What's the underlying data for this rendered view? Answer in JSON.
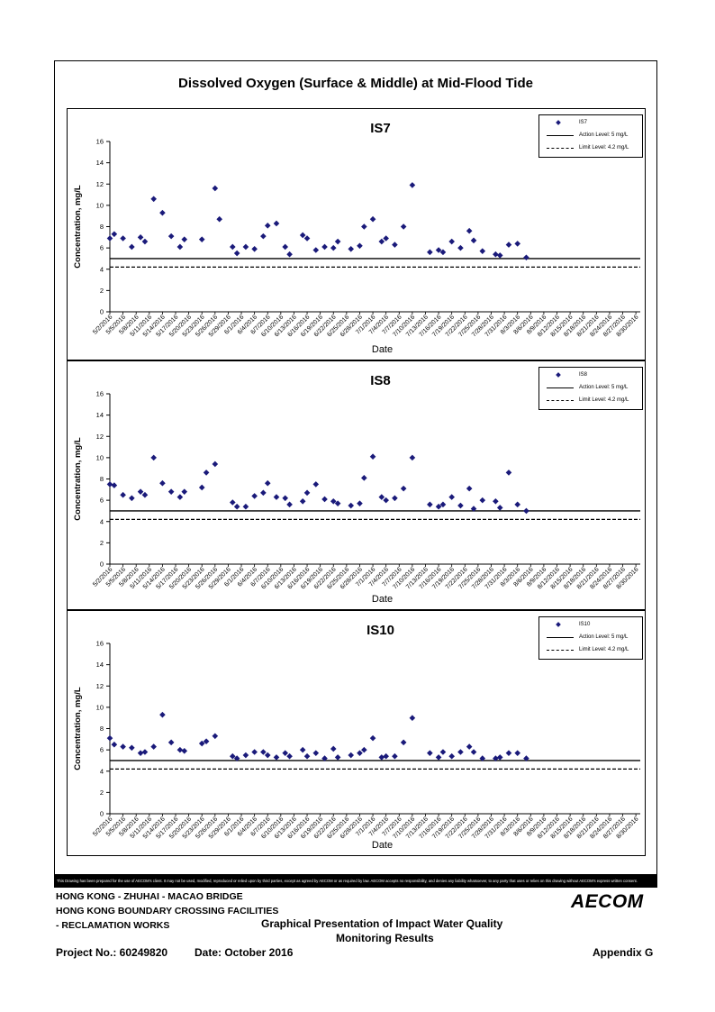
{
  "page_title": "Dissolved Oxygen (Surface & Middle) at Mid-Flood Tide",
  "chart_data": [
    {
      "type": "scatter",
      "title": "IS7",
      "xlabel": "Date",
      "ylabel": "Concentration, mg/L",
      "ylim": [
        0,
        16
      ],
      "yticks": [
        0,
        2,
        4,
        6,
        8,
        10,
        12,
        14,
        16
      ],
      "xlim": [
        "2016-05-02",
        "2016-08-31"
      ],
      "x_tick_labels": [
        "5/2/2016",
        "5/5/2016",
        "5/8/2016",
        "5/11/2016",
        "5/14/2016",
        "5/17/2016",
        "5/20/2016",
        "5/23/2016",
        "5/26/2016",
        "5/29/2016",
        "6/1/2016",
        "6/4/2016",
        "6/7/2016",
        "6/10/2016",
        "6/13/2016",
        "6/16/2016",
        "6/19/2016",
        "6/22/2016",
        "6/25/2016",
        "6/28/2016",
        "7/1/2016",
        "7/4/2016",
        "7/7/2016",
        "7/10/2016",
        "7/13/2016",
        "7/16/2016",
        "7/19/2016",
        "7/22/2016",
        "7/25/2016",
        "7/28/2016",
        "7/31/2016",
        "8/3/2016",
        "8/6/2016",
        "8/9/2016",
        "8/12/2016",
        "8/15/2016",
        "8/18/2016",
        "8/21/2016",
        "8/24/2016",
        "8/27/2016",
        "8/30/2016"
      ],
      "series": [
        {
          "name": "IS7",
          "marker": "diamond",
          "color": "#1a1a7a",
          "points": [
            [
              "2016-05-02",
              6.9
            ],
            [
              "2016-05-03",
              7.3
            ],
            [
              "2016-05-05",
              6.9
            ],
            [
              "2016-05-07",
              6.1
            ],
            [
              "2016-05-09",
              7.0
            ],
            [
              "2016-05-10",
              6.6
            ],
            [
              "2016-05-12",
              10.6
            ],
            [
              "2016-05-14",
              9.3
            ],
            [
              "2016-05-16",
              7.1
            ],
            [
              "2016-05-18",
              6.1
            ],
            [
              "2016-05-19",
              6.8
            ],
            [
              "2016-05-23",
              6.8
            ],
            [
              "2016-05-26",
              11.6
            ],
            [
              "2016-05-27",
              8.7
            ],
            [
              "2016-05-30",
              6.1
            ],
            [
              "2016-05-31",
              5.5
            ],
            [
              "2016-06-02",
              6.1
            ],
            [
              "2016-06-04",
              5.9
            ],
            [
              "2016-06-06",
              7.1
            ],
            [
              "2016-06-07",
              8.1
            ],
            [
              "2016-06-09",
              8.3
            ],
            [
              "2016-06-11",
              6.1
            ],
            [
              "2016-06-12",
              5.4
            ],
            [
              "2016-06-15",
              7.2
            ],
            [
              "2016-06-16",
              6.9
            ],
            [
              "2016-06-18",
              5.8
            ],
            [
              "2016-06-20",
              6.1
            ],
            [
              "2016-06-22",
              6.0
            ],
            [
              "2016-06-23",
              6.6
            ],
            [
              "2016-06-26",
              5.9
            ],
            [
              "2016-06-28",
              6.2
            ],
            [
              "2016-06-29",
              8.0
            ],
            [
              "2016-07-01",
              8.7
            ],
            [
              "2016-07-03",
              6.6
            ],
            [
              "2016-07-04",
              6.9
            ],
            [
              "2016-07-06",
              6.3
            ],
            [
              "2016-07-08",
              8.0
            ],
            [
              "2016-07-10",
              11.9
            ],
            [
              "2016-07-14",
              5.6
            ],
            [
              "2016-07-16",
              5.8
            ],
            [
              "2016-07-17",
              5.6
            ],
            [
              "2016-07-19",
              6.6
            ],
            [
              "2016-07-21",
              6.0
            ],
            [
              "2016-07-23",
              7.6
            ],
            [
              "2016-07-24",
              6.7
            ],
            [
              "2016-07-26",
              5.7
            ],
            [
              "2016-07-29",
              5.4
            ],
            [
              "2016-07-30",
              5.3
            ],
            [
              "2016-08-01",
              6.3
            ],
            [
              "2016-08-03",
              6.4
            ],
            [
              "2016-08-05",
              5.1
            ]
          ]
        }
      ],
      "reference_lines": [
        {
          "label": "Action Level: 5 mg/L",
          "value": 5,
          "style": "solid"
        },
        {
          "label": "Limit Level: 4.2 mg/L",
          "value": 4.2,
          "style": "dashed"
        }
      ],
      "legend": "top-right"
    },
    {
      "type": "scatter",
      "title": "IS8",
      "xlabel": "Date",
      "ylabel": "Concentration, mg/L",
      "ylim": [
        0,
        16
      ],
      "yticks": [
        0,
        2,
        4,
        6,
        8,
        10,
        12,
        14,
        16
      ],
      "xlim": [
        "2016-05-02",
        "2016-08-31"
      ],
      "x_tick_labels": [
        "5/2/2016",
        "5/5/2016",
        "5/8/2016",
        "5/11/2016",
        "5/14/2016",
        "5/17/2016",
        "5/20/2016",
        "5/23/2016",
        "5/26/2016",
        "5/29/2016",
        "6/1/2016",
        "6/4/2016",
        "6/7/2016",
        "6/10/2016",
        "6/13/2016",
        "6/16/2016",
        "6/19/2016",
        "6/22/2016",
        "6/25/2016",
        "6/28/2016",
        "7/1/2016",
        "7/4/2016",
        "7/7/2016",
        "7/10/2016",
        "7/13/2016",
        "7/16/2016",
        "7/19/2016",
        "7/22/2016",
        "7/25/2016",
        "7/28/2016",
        "7/31/2016",
        "8/3/2016",
        "8/6/2016",
        "8/9/2016",
        "8/12/2016",
        "8/15/2016",
        "8/18/2016",
        "8/21/2016",
        "8/24/2016",
        "8/27/2016",
        "8/30/2016"
      ],
      "series": [
        {
          "name": "IS8",
          "marker": "diamond",
          "color": "#1a1a7a",
          "points": [
            [
              "2016-05-02",
              7.5
            ],
            [
              "2016-05-03",
              7.4
            ],
            [
              "2016-05-05",
              6.5
            ],
            [
              "2016-05-07",
              6.2
            ],
            [
              "2016-05-09",
              6.8
            ],
            [
              "2016-05-10",
              6.5
            ],
            [
              "2016-05-12",
              10.0
            ],
            [
              "2016-05-14",
              7.6
            ],
            [
              "2016-05-16",
              6.8
            ],
            [
              "2016-05-18",
              6.3
            ],
            [
              "2016-05-19",
              6.8
            ],
            [
              "2016-05-23",
              7.2
            ],
            [
              "2016-05-24",
              8.6
            ],
            [
              "2016-05-26",
              9.4
            ],
            [
              "2016-05-30",
              5.8
            ],
            [
              "2016-05-31",
              5.4
            ],
            [
              "2016-06-02",
              5.4
            ],
            [
              "2016-06-04",
              6.4
            ],
            [
              "2016-06-06",
              6.7
            ],
            [
              "2016-06-07",
              7.6
            ],
            [
              "2016-06-09",
              6.3
            ],
            [
              "2016-06-11",
              6.2
            ],
            [
              "2016-06-12",
              5.6
            ],
            [
              "2016-06-15",
              5.9
            ],
            [
              "2016-06-16",
              6.7
            ],
            [
              "2016-06-18",
              7.5
            ],
            [
              "2016-06-20",
              6.1
            ],
            [
              "2016-06-22",
              5.9
            ],
            [
              "2016-06-23",
              5.7
            ],
            [
              "2016-06-26",
              5.5
            ],
            [
              "2016-06-28",
              5.7
            ],
            [
              "2016-06-29",
              8.1
            ],
            [
              "2016-07-01",
              10.1
            ],
            [
              "2016-07-03",
              6.3
            ],
            [
              "2016-07-04",
              6.0
            ],
            [
              "2016-07-06",
              6.2
            ],
            [
              "2016-07-08",
              7.1
            ],
            [
              "2016-07-10",
              10.0
            ],
            [
              "2016-07-14",
              5.6
            ],
            [
              "2016-07-16",
              5.4
            ],
            [
              "2016-07-17",
              5.6
            ],
            [
              "2016-07-19",
              6.3
            ],
            [
              "2016-07-21",
              5.5
            ],
            [
              "2016-07-23",
              7.1
            ],
            [
              "2016-07-24",
              5.2
            ],
            [
              "2016-07-26",
              6.0
            ],
            [
              "2016-07-29",
              5.9
            ],
            [
              "2016-07-30",
              5.3
            ],
            [
              "2016-08-01",
              8.6
            ],
            [
              "2016-08-03",
              5.6
            ],
            [
              "2016-08-05",
              5.0
            ]
          ]
        }
      ],
      "reference_lines": [
        {
          "label": "Action Level: 5 mg/L",
          "value": 5,
          "style": "solid"
        },
        {
          "label": "Limit Level: 4.2 mg/L",
          "value": 4.2,
          "style": "dashed"
        }
      ],
      "legend": "top-right"
    },
    {
      "type": "scatter",
      "title": "IS10",
      "xlabel": "Date",
      "ylabel": "Concentration, mg/L",
      "ylim": [
        0,
        16
      ],
      "yticks": [
        0,
        2,
        4,
        6,
        8,
        10,
        12,
        14,
        16
      ],
      "xlim": [
        "2016-05-02",
        "2016-08-31"
      ],
      "x_tick_labels": [
        "5/2/2016",
        "5/5/2016",
        "5/8/2016",
        "5/11/2016",
        "5/14/2016",
        "5/17/2016",
        "5/20/2016",
        "5/23/2016",
        "5/26/2016",
        "5/29/2016",
        "6/1/2016",
        "6/4/2016",
        "6/7/2016",
        "6/10/2016",
        "6/13/2016",
        "6/16/2016",
        "6/19/2016",
        "6/22/2016",
        "6/25/2016",
        "6/28/2016",
        "7/1/2016",
        "7/4/2016",
        "7/7/2016",
        "7/10/2016",
        "7/13/2016",
        "7/16/2016",
        "7/19/2016",
        "7/22/2016",
        "7/25/2016",
        "7/28/2016",
        "7/31/2016",
        "8/3/2016",
        "8/6/2016",
        "8/9/2016",
        "8/12/2016",
        "8/15/2016",
        "8/18/2016",
        "8/21/2016",
        "8/24/2016",
        "8/27/2016",
        "8/30/2016"
      ],
      "series": [
        {
          "name": "IS10",
          "marker": "diamond",
          "color": "#1a1a7a",
          "points": [
            [
              "2016-05-02",
              7.1
            ],
            [
              "2016-05-03",
              6.5
            ],
            [
              "2016-05-05",
              6.3
            ],
            [
              "2016-05-07",
              6.2
            ],
            [
              "2016-05-09",
              5.7
            ],
            [
              "2016-05-10",
              5.8
            ],
            [
              "2016-05-12",
              6.3
            ],
            [
              "2016-05-14",
              9.3
            ],
            [
              "2016-05-16",
              6.7
            ],
            [
              "2016-05-18",
              6.0
            ],
            [
              "2016-05-19",
              5.9
            ],
            [
              "2016-05-23",
              6.6
            ],
            [
              "2016-05-24",
              6.8
            ],
            [
              "2016-05-26",
              7.3
            ],
            [
              "2016-05-30",
              5.4
            ],
            [
              "2016-05-31",
              5.2
            ],
            [
              "2016-06-02",
              5.5
            ],
            [
              "2016-06-04",
              5.8
            ],
            [
              "2016-06-06",
              5.8
            ],
            [
              "2016-06-07",
              5.5
            ],
            [
              "2016-06-09",
              5.3
            ],
            [
              "2016-06-11",
              5.7
            ],
            [
              "2016-06-12",
              5.4
            ],
            [
              "2016-06-15",
              6.0
            ],
            [
              "2016-06-16",
              5.4
            ],
            [
              "2016-06-18",
              5.7
            ],
            [
              "2016-06-20",
              5.2
            ],
            [
              "2016-06-22",
              6.1
            ],
            [
              "2016-06-23",
              5.3
            ],
            [
              "2016-06-26",
              5.5
            ],
            [
              "2016-06-28",
              5.7
            ],
            [
              "2016-06-29",
              6.0
            ],
            [
              "2016-07-01",
              7.1
            ],
            [
              "2016-07-03",
              5.3
            ],
            [
              "2016-07-04",
              5.4
            ],
            [
              "2016-07-06",
              5.4
            ],
            [
              "2016-07-08",
              6.7
            ],
            [
              "2016-07-10",
              9.0
            ],
            [
              "2016-07-14",
              5.7
            ],
            [
              "2016-07-16",
              5.3
            ],
            [
              "2016-07-17",
              5.8
            ],
            [
              "2016-07-19",
              5.4
            ],
            [
              "2016-07-21",
              5.8
            ],
            [
              "2016-07-23",
              6.3
            ],
            [
              "2016-07-24",
              5.8
            ],
            [
              "2016-07-26",
              5.2
            ],
            [
              "2016-07-29",
              5.2
            ],
            [
              "2016-07-30",
              5.3
            ],
            [
              "2016-08-01",
              5.7
            ],
            [
              "2016-08-03",
              5.7
            ],
            [
              "2016-08-05",
              5.2
            ]
          ]
        }
      ],
      "reference_lines": [
        {
          "label": "Action Level: 5 mg/L",
          "value": 5,
          "style": "solid"
        },
        {
          "label": "Limit Level: 4.2 mg/L",
          "value": 4.2,
          "style": "dashed"
        }
      ],
      "legend": "top-right"
    }
  ],
  "disclaimer": "This Drawing has been prepared for the use of AECOM's client. It may not be used, modified, reproduced or relied upon by third parties, except as agreed by AECOM or as required by law. AECOM accepts no responsibility, and denies any liability whatsoever, to any party that uses or relies on this drawing without AECOM's express written consent.",
  "footer": {
    "project_line1": "HONG KONG - ZHUHAI - MACAO BRIDGE",
    "project_line2": "HONG KONG BOUNDARY CROSSING FACILITIES",
    "project_line3": "- RECLAMATION WORKS",
    "drawing_title_line1": "Graphical Presentation of Impact Water Quality",
    "drawing_title_line2": "Monitoring Results",
    "project_no": "Project No.: 60249820",
    "date": "Date: October 2016",
    "appendix": "Appendix G",
    "logo": "AECOM"
  }
}
